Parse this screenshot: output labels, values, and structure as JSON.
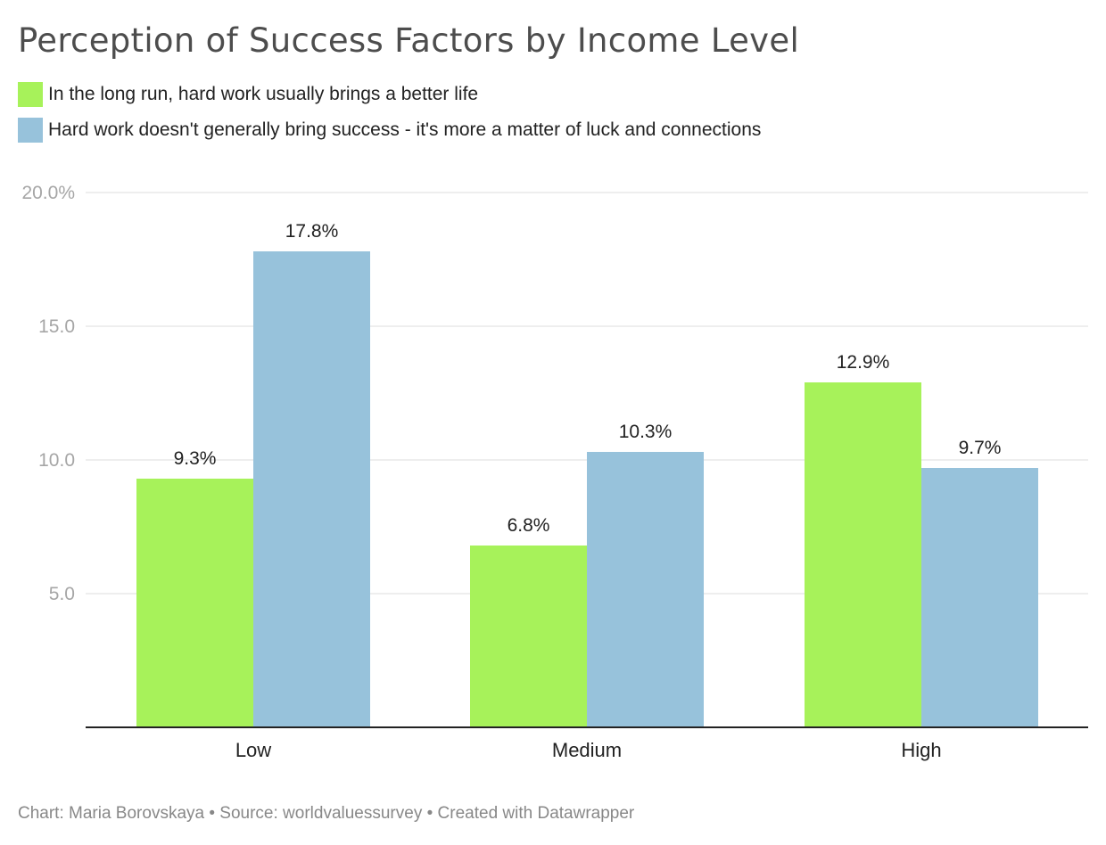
{
  "chart_data": {
    "type": "bar",
    "title": "Perception of Success Factors by Income Level",
    "categories": [
      "Low",
      "Medium",
      "High"
    ],
    "series": [
      {
        "name": "In the long run, hard work usually brings a better life",
        "values": [
          9.3,
          6.8,
          12.9
        ],
        "labels": [
          "9.3%",
          "6.8%",
          "12.9%"
        ],
        "color": "#a7f25a"
      },
      {
        "name": "Hard work doesn't generally bring success - it's more a matter of luck and connections",
        "values": [
          17.8,
          10.3,
          9.7
        ],
        "labels": [
          "17.8%",
          "10.3%",
          "9.7%"
        ],
        "color": "#97c2db"
      }
    ],
    "ylim": [
      0,
      20
    ],
    "yticks": [
      5,
      10,
      15,
      20
    ],
    "ytick_labels": [
      "5.0",
      "10.0",
      "15.0",
      "20.0%"
    ],
    "grid": true,
    "legend_position": "top-left"
  },
  "footer": "Chart: Maria Borovskaya • Source: worldvaluessurvey • Created with Datawrapper"
}
